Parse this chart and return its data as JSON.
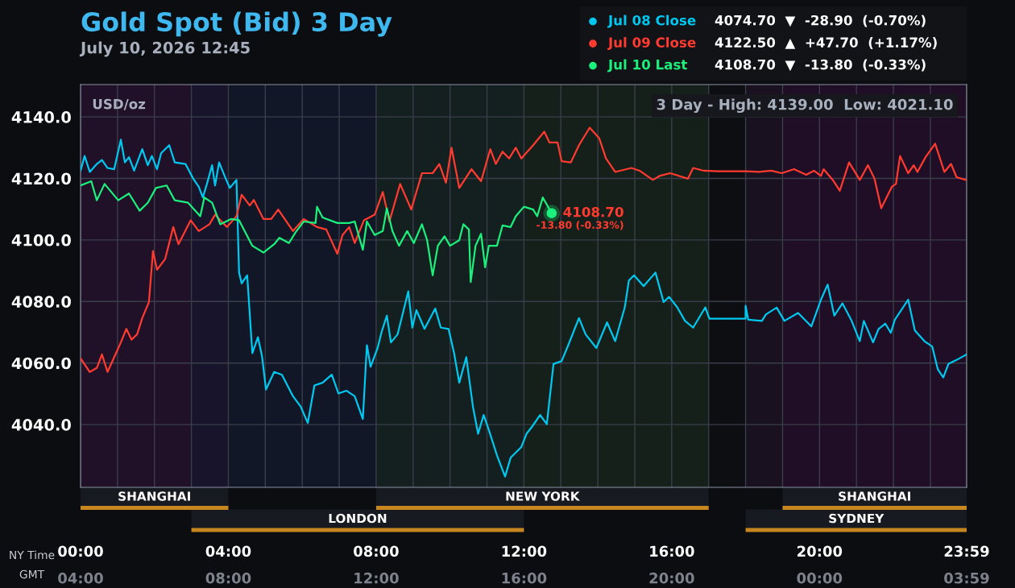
{
  "chart_data": {
    "type": "line",
    "title": "Gold Spot (Bid) 3 Day",
    "subtitle": "July 10, 2026 12:45",
    "ylabel": "USD/oz",
    "xlabel": "NY Time",
    "x2label": "GMT",
    "xlim": [
      0,
      23.983
    ],
    "ylim": [
      4019.6,
      4150.5
    ],
    "xticks": [
      {
        "value": 0,
        "label": "00:00"
      },
      {
        "value": 1,
        "label": null
      },
      {
        "value": 2,
        "label": null
      },
      {
        "value": 3,
        "label": null
      },
      {
        "value": 4,
        "label": "04:00"
      },
      {
        "value": 5,
        "label": null
      },
      {
        "value": 6,
        "label": null
      },
      {
        "value": 7,
        "label": null
      },
      {
        "value": 8,
        "label": "08:00"
      },
      {
        "value": 9,
        "label": null
      },
      {
        "value": 10,
        "label": null
      },
      {
        "value": 11,
        "label": null
      },
      {
        "value": 12,
        "label": "12:00"
      },
      {
        "value": 13,
        "label": null
      },
      {
        "value": 14,
        "label": null
      },
      {
        "value": 15,
        "label": null
      },
      {
        "value": 16,
        "label": "16:00"
      },
      {
        "value": 17,
        "label": null
      },
      {
        "value": 18,
        "label": null
      },
      {
        "value": 19,
        "label": null
      },
      {
        "value": 20,
        "label": "20:00"
      },
      {
        "value": 21,
        "label": null
      },
      {
        "value": 22,
        "label": null
      },
      {
        "value": 23,
        "label": null
      },
      {
        "value": 23.983,
        "label": "23:59"
      }
    ],
    "x2lim": [
      "2026-07-10T04:00",
      "2026-07-11T03:59"
    ],
    "x2ticks": [
      {
        "value": "2026-07-10T04:00",
        "label": "04:00"
      },
      {
        "value": "2026-07-10T08:00",
        "label": "08:00"
      },
      {
        "value": "2026-07-10T12:00",
        "label": "12:00"
      },
      {
        "value": "2026-07-10T16:00",
        "label": "16:00"
      },
      {
        "value": "2026-07-10T20:00",
        "label": "20:00"
      },
      {
        "value": "2026-07-11T00:00",
        "label": "00:00"
      },
      {
        "value": "2026-07-11T03:59",
        "label": "03:59"
      }
    ],
    "yticks": [
      {
        "value": 4040,
        "label": "4040.0"
      },
      {
        "value": 4060,
        "label": "4060.0"
      },
      {
        "value": 4080,
        "label": "4080.0"
      },
      {
        "value": 4100,
        "label": "4100.0"
      },
      {
        "value": 4120,
        "label": "4120.0"
      },
      {
        "value": 4140,
        "label": "4140.0"
      }
    ],
    "grid": true,
    "legend": "top right",
    "bands": [
      {
        "axis": "x",
        "from": 17,
        "to": 18,
        "color": "#0c0e11"
      },
      {
        "axis": "x",
        "from": 0,
        "to": 4,
        "label": "SHANGHAI",
        "color": "#2c0c34"
      },
      {
        "axis": "x",
        "from": 3,
        "to": 12,
        "label": "LONDON",
        "color": "#0d1730"
      },
      {
        "axis": "x",
        "from": 8,
        "to": 17,
        "label": "NEW YORK",
        "color": "#172918"
      },
      {
        "axis": "x",
        "from": 18,
        "to": 23.983,
        "label": "SYDNEY",
        "color": "#1d0b22"
      },
      {
        "axis": "x",
        "from": 19,
        "to": 23.983,
        "label": "SHANGHAI",
        "color": "#2c0c34"
      }
    ],
    "annotations": [
      "4074.70  ▼  -28.90  (-0.70%)",
      "4122.50  ▲  +47.70  (+1.17%)",
      "4108.70  ▼  -13.80  (-0.33%)",
      "3 Day - High: 4139.00  Low: 4021.10",
      {
        "text": "4108.70",
        "x": 12.75,
        "y": 4108.7
      },
      "-13.80 (-0.33%)"
    ],
    "series": [
      {
        "name": "Jul 08 Close",
        "color": "#00c8f0",
        "x": [
          0,
          0.11,
          0.25,
          0.44,
          0.58,
          0.73,
          0.91,
          1.09,
          1.2,
          1.31,
          1.45,
          1.67,
          1.82,
          1.93,
          2.07,
          2.18,
          2.4,
          2.55,
          2.84,
          3.05,
          3.2,
          3.31,
          3.42,
          3.56,
          3.64,
          3.75,
          3.93,
          4.04,
          4.22,
          4.29,
          4.36,
          4.51,
          4.65,
          4.8,
          4.91,
          5.02,
          5.24,
          5.45,
          5.75,
          5.96,
          6.15,
          6.33,
          6.55,
          6.8,
          6.98,
          7.2,
          7.42,
          7.64,
          7.75,
          7.85,
          8.04,
          8.15,
          8.29,
          8.4,
          8.58,
          8.87,
          8.98,
          9.09,
          9.31,
          9.6,
          9.75,
          9.96,
          10.11,
          10.25,
          10.44,
          10.62,
          10.76,
          10.91,
          11.06,
          11.27,
          11.49,
          11.64,
          11.93,
          12.07,
          12.22,
          12.44,
          12.62,
          12.8,
          13.02,
          13.2,
          13.49,
          13.67,
          13.96,
          14.25,
          14.47,
          14.73,
          14.84,
          14.98,
          15.24,
          15.56,
          15.78,
          15.93,
          16.15,
          16.36,
          16.58,
          16.91,
          17.02,
          18.0,
          18.0,
          18.07,
          18.44,
          18.55,
          18.84,
          19.05,
          19.42,
          19.78,
          20.04,
          20.22,
          20.4,
          20.62,
          20.87,
          21.09,
          21.2,
          21.45,
          21.6,
          21.78,
          21.93,
          22.04,
          22.4,
          22.58,
          22.84,
          23.05,
          23.2,
          23.35,
          23.49,
          23.71,
          23.98
        ],
        "values": [
          4122.5,
          4127.3,
          4122.1,
          4124.7,
          4126,
          4123.4,
          4123,
          4132.6,
          4125.2,
          4126.9,
          4122.5,
          4129.5,
          4124.3,
          4127.3,
          4123,
          4128.2,
          4130.8,
          4125.2,
          4124.7,
          4119.9,
          4117.3,
          4113.8,
          4118.2,
          4124.3,
          4117.7,
          4125.2,
          4119.9,
          4116.9,
          4119.5,
          4089.4,
          4085.9,
          4088.5,
          4063.2,
          4068.4,
          4062.3,
          4051.4,
          4057.1,
          4056.2,
          4049.2,
          4045.8,
          4040.5,
          4052.7,
          4053.6,
          4056.2,
          4050.1,
          4051,
          4049.2,
          4041.8,
          4065.8,
          4058.8,
          4064.9,
          4070.2,
          4075.4,
          4066.7,
          4069.3,
          4083.3,
          4071.5,
          4077.2,
          4071.1,
          4077.7,
          4071.5,
          4071.1,
          4063.2,
          4053.6,
          4061.9,
          4045.8,
          4037,
          4043.1,
          4037.9,
          4030,
          4023.1,
          4029.2,
          4032.7,
          4037,
          4039.3,
          4043.1,
          4040.1,
          4059.7,
          4060.6,
          4065.8,
          4074.6,
          4069.3,
          4064.9,
          4073.2,
          4067.1,
          4078.1,
          4086.8,
          4088.5,
          4085,
          4089.4,
          4079.8,
          4081.5,
          4078.1,
          4073.7,
          4071.5,
          4078.1,
          4074.4,
          4074.4,
          4078.6,
          4074.1,
          4073.7,
          4075.8,
          4078,
          4073.7,
          4076.3,
          4071.9,
          4080.6,
          4085.5,
          4075.4,
          4079.4,
          4073.7,
          4067.1,
          4073.7,
          4066.7,
          4071.1,
          4072.8,
          4069.8,
          4074.1,
          4080.6,
          4070.6,
          4067.1,
          4065.4,
          4058,
          4055.3,
          4059.7,
          4061,
          4062.8
        ]
      },
      {
        "name": "Jul 09 Close",
        "color": "#ff3b30",
        "x": [
          0,
          0.25,
          0.44,
          0.58,
          0.73,
          0.91,
          1.09,
          1.24,
          1.38,
          1.53,
          1.67,
          1.85,
          1.96,
          2.07,
          2.29,
          2.51,
          2.65,
          2.98,
          3.2,
          3.49,
          3.64,
          3.96,
          4.22,
          4.36,
          4.58,
          4.69,
          4.95,
          5.16,
          5.35,
          5.75,
          6.04,
          6.4,
          6.65,
          6.95,
          7.09,
          7.27,
          7.42,
          7.67,
          7.96,
          8.18,
          8.36,
          8.65,
          8.95,
          9.24,
          9.53,
          9.71,
          9.89,
          10.04,
          10.25,
          10.58,
          10.84,
          11.09,
          11.24,
          11.42,
          11.6,
          11.78,
          11.93,
          12.25,
          12.55,
          12.69,
          12.91,
          13.02,
          13.27,
          13.49,
          13.78,
          14.04,
          14.22,
          14.47,
          14.91,
          15.13,
          15.49,
          15.67,
          15.96,
          16.44,
          16.58,
          16.87,
          17.24,
          18.0,
          18.36,
          18.69,
          18.98,
          19.31,
          19.64,
          19.85,
          20.04,
          20.11,
          20.36,
          20.55,
          20.8,
          21.09,
          21.31,
          21.49,
          21.67,
          21.96,
          22.07,
          22.18,
          22.4,
          22.55,
          22.65,
          22.87,
          23.13,
          23.38,
          23.56,
          23.71,
          23.96
        ],
        "values": [
          4061.5,
          4057.1,
          4058.4,
          4062.8,
          4057.1,
          4061.9,
          4066.7,
          4071.1,
          4067.6,
          4069.3,
          4074.6,
          4079.8,
          4096.4,
          4090.3,
          4093.8,
          4104.2,
          4098.6,
          4106.4,
          4102.9,
          4105.1,
          4108.2,
          4104.2,
          4107.7,
          4114.7,
          4111.2,
          4113,
          4106.8,
          4106.8,
          4109.9,
          4102.9,
          4106.8,
          4104.2,
          4103.4,
          4095.5,
          4101.6,
          4104.2,
          4099,
          4106.4,
          4108.2,
          4115.6,
          4106,
          4118.2,
          4109.9,
          4121.7,
          4121.7,
          4124.7,
          4118.6,
          4130,
          4116.9,
          4123,
          4119.1,
          4129.5,
          4124.7,
          4128.7,
          4126.5,
          4130,
          4126.5,
          4130.8,
          4135.2,
          4131.7,
          4131.7,
          4125.6,
          4125.2,
          4130.8,
          4136.5,
          4133,
          4126.5,
          4122.1,
          4123.4,
          4122.5,
          4119.5,
          4120.8,
          4121.7,
          4119.9,
          4123.4,
          4122.5,
          4122.3,
          4122.3,
          4122.1,
          4122.5,
          4121.7,
          4123,
          4121.2,
          4122.5,
          4120.8,
          4123,
          4119.5,
          4116,
          4125.2,
          4119.5,
          4124.3,
          4119.9,
          4110.3,
          4117.3,
          4118.2,
          4127.3,
          4121.7,
          4124.3,
          4122.1,
          4126.9,
          4131.3,
          4122.1,
          4124.7,
          4120.4,
          4119.5
        ]
      },
      {
        "name": "Jul 10 Last",
        "color": "#1cf07c",
        "x": [
          0,
          0.29,
          0.44,
          0.65,
          1.02,
          1.31,
          1.6,
          1.82,
          2.04,
          2.33,
          2.55,
          2.91,
          3.24,
          3.35,
          3.56,
          3.78,
          4.07,
          4.29,
          4.65,
          4.95,
          5.24,
          5.38,
          5.64,
          5.82,
          6.04,
          6.36,
          6.4,
          6.55,
          6.95,
          7.27,
          7.42,
          7.64,
          7.75,
          7.96,
          8.18,
          8.29,
          8.44,
          8.62,
          8.84,
          9.02,
          9.24,
          9.38,
          9.53,
          9.67,
          9.85,
          10.0,
          10.25,
          10.36,
          10.51,
          10.56,
          10.69,
          10.84,
          10.95,
          11.05,
          11.27,
          11.42,
          11.64,
          11.78,
          12.0,
          12.25,
          12.36,
          12.51,
          12.75
        ],
        "values": [
          4117.7,
          4119.1,
          4112.9,
          4118.2,
          4112.9,
          4115.1,
          4109.5,
          4112.1,
          4116.9,
          4117.7,
          4112.9,
          4112.1,
          4107.7,
          4113.8,
          4112.1,
          4105.1,
          4106.8,
          4106.4,
          4098.1,
          4095.9,
          4098.6,
          4100.7,
          4099,
          4102.5,
          4106,
          4105.5,
          4110.8,
          4107.3,
          4105.5,
          4105.5,
          4106,
          4096.8,
          4106,
          4101.6,
          4102.9,
          4110.3,
          4102.9,
          4098.1,
          4102.9,
          4099,
          4105.1,
          4099.9,
          4088.5,
          4098.1,
          4101.2,
          4098.1,
          4099.9,
          4105.1,
          4103.4,
          4086.3,
          4098.1,
          4102,
          4091.1,
          4098.1,
          4098.1,
          4104.7,
          4104.2,
          4107.7,
          4110.8,
          4109.9,
          4107.7,
          4113.8,
          4108.7
        ]
      },
      {
        "type": "scatter",
        "color": "#1cf07c",
        "x": [
          12.75
        ],
        "values": [
          4108.7
        ]
      }
    ]
  }
}
